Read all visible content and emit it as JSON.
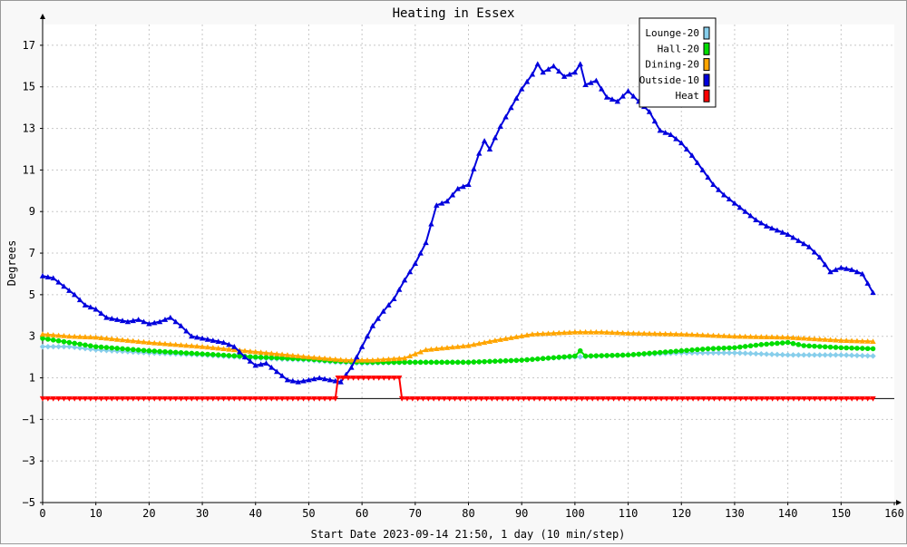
{
  "chart_data": {
    "type": "line",
    "title": "Heating in Essex",
    "xlabel": "Start Date 2023-09-14 21:50, 1 day (10 min/step)",
    "ylabel": "Degrees",
    "xlim": [
      0,
      160
    ],
    "ylim": [
      -5,
      18
    ],
    "x_ticks": [
      0,
      10,
      20,
      30,
      40,
      50,
      60,
      70,
      80,
      90,
      100,
      110,
      120,
      130,
      140,
      150,
      160
    ],
    "y_ticks": [
      -5,
      -3,
      -1,
      1,
      3,
      5,
      7,
      9,
      11,
      13,
      15,
      17
    ],
    "grid": true,
    "legend_position": "top-right",
    "series": [
      {
        "name": "Lounge-20",
        "color": "#87ceeb",
        "marker": "diamond",
        "points": [
          [
            0,
            2.5
          ],
          [
            5,
            2.5
          ],
          [
            10,
            2.35
          ],
          [
            20,
            2.2
          ],
          [
            30,
            2.1
          ],
          [
            40,
            1.95
          ],
          [
            50,
            1.85
          ],
          [
            55,
            1.75
          ],
          [
            60,
            1.7
          ],
          [
            70,
            1.75
          ],
          [
            80,
            1.75
          ],
          [
            90,
            1.85
          ],
          [
            95,
            1.95
          ],
          [
            100,
            2.0
          ],
          [
            110,
            2.1
          ],
          [
            120,
            2.2
          ],
          [
            130,
            2.2
          ],
          [
            140,
            2.1
          ],
          [
            150,
            2.1
          ],
          [
            156,
            2.05
          ]
        ]
      },
      {
        "name": "Hall-20",
        "color": "#00dd00",
        "marker": "circle",
        "points": [
          [
            0,
            2.9
          ],
          [
            5,
            2.7
          ],
          [
            10,
            2.5
          ],
          [
            20,
            2.3
          ],
          [
            30,
            2.15
          ],
          [
            40,
            2.0
          ],
          [
            50,
            1.9
          ],
          [
            55,
            1.8
          ],
          [
            60,
            1.75
          ],
          [
            70,
            1.75
          ],
          [
            80,
            1.75
          ],
          [
            90,
            1.85
          ],
          [
            95,
            1.95
          ],
          [
            100,
            2.05
          ],
          [
            101,
            2.3
          ],
          [
            102,
            2.05
          ],
          [
            110,
            2.1
          ],
          [
            120,
            2.3
          ],
          [
            125,
            2.4
          ],
          [
            130,
            2.45
          ],
          [
            135,
            2.6
          ],
          [
            140,
            2.7
          ],
          [
            143,
            2.55
          ],
          [
            150,
            2.45
          ],
          [
            156,
            2.4
          ]
        ]
      },
      {
        "name": "Dining-20",
        "color": "#ffa500",
        "marker": "triangle",
        "points": [
          [
            0,
            3.1
          ],
          [
            5,
            3.0
          ],
          [
            10,
            2.95
          ],
          [
            20,
            2.7
          ],
          [
            30,
            2.5
          ],
          [
            40,
            2.25
          ],
          [
            50,
            2.0
          ],
          [
            57,
            1.85
          ],
          [
            62,
            1.85
          ],
          [
            68,
            1.95
          ],
          [
            72,
            2.35
          ],
          [
            80,
            2.55
          ],
          [
            85,
            2.8
          ],
          [
            92,
            3.1
          ],
          [
            100,
            3.2
          ],
          [
            105,
            3.2
          ],
          [
            110,
            3.15
          ],
          [
            120,
            3.1
          ],
          [
            130,
            3.0
          ],
          [
            140,
            2.95
          ],
          [
            150,
            2.8
          ],
          [
            156,
            2.75
          ]
        ]
      },
      {
        "name": "Outside-10",
        "color": "#0000dd",
        "marker": "triangle",
        "points": [
          [
            0,
            5.9
          ],
          [
            2,
            5.8
          ],
          [
            4,
            5.4
          ],
          [
            6,
            5.0
          ],
          [
            8,
            4.5
          ],
          [
            10,
            4.3
          ],
          [
            12,
            3.9
          ],
          [
            14,
            3.8
          ],
          [
            16,
            3.7
          ],
          [
            18,
            3.8
          ],
          [
            20,
            3.6
          ],
          [
            22,
            3.7
          ],
          [
            24,
            3.9
          ],
          [
            26,
            3.5
          ],
          [
            28,
            3.0
          ],
          [
            30,
            2.9
          ],
          [
            32,
            2.8
          ],
          [
            34,
            2.7
          ],
          [
            36,
            2.5
          ],
          [
            38,
            2.0
          ],
          [
            40,
            1.6
          ],
          [
            42,
            1.7
          ],
          [
            44,
            1.3
          ],
          [
            46,
            0.9
          ],
          [
            48,
            0.8
          ],
          [
            50,
            0.9
          ],
          [
            52,
            1.0
          ],
          [
            54,
            0.9
          ],
          [
            56,
            0.8
          ],
          [
            58,
            1.5
          ],
          [
            60,
            2.5
          ],
          [
            62,
            3.5
          ],
          [
            64,
            4.2
          ],
          [
            66,
            4.8
          ],
          [
            68,
            5.7
          ],
          [
            70,
            6.5
          ],
          [
            72,
            7.5
          ],
          [
            74,
            9.3
          ],
          [
            76,
            9.5
          ],
          [
            78,
            10.1
          ],
          [
            80,
            10.3
          ],
          [
            82,
            11.8
          ],
          [
            83,
            12.4
          ],
          [
            84,
            12.0
          ],
          [
            86,
            13.1
          ],
          [
            88,
            14.0
          ],
          [
            90,
            14.9
          ],
          [
            92,
            15.6
          ],
          [
            93,
            16.1
          ],
          [
            94,
            15.7
          ],
          [
            96,
            16.0
          ],
          [
            98,
            15.5
          ],
          [
            100,
            15.7
          ],
          [
            101,
            16.1
          ],
          [
            102,
            15.1
          ],
          [
            104,
            15.3
          ],
          [
            106,
            14.5
          ],
          [
            108,
            14.3
          ],
          [
            110,
            14.8
          ],
          [
            112,
            14.3
          ],
          [
            114,
            13.8
          ],
          [
            116,
            12.9
          ],
          [
            118,
            12.7
          ],
          [
            120,
            12.3
          ],
          [
            122,
            11.7
          ],
          [
            124,
            11.0
          ],
          [
            126,
            10.3
          ],
          [
            128,
            9.8
          ],
          [
            130,
            9.4
          ],
          [
            132,
            9.0
          ],
          [
            134,
            8.6
          ],
          [
            136,
            8.3
          ],
          [
            138,
            8.1
          ],
          [
            140,
            7.9
          ],
          [
            142,
            7.6
          ],
          [
            144,
            7.3
          ],
          [
            146,
            6.8
          ],
          [
            148,
            6.1
          ],
          [
            150,
            6.3
          ],
          [
            152,
            6.2
          ],
          [
            154,
            6.0
          ],
          [
            156,
            5.1
          ]
        ]
      },
      {
        "name": "Heat",
        "color": "#ff0000",
        "marker": "triangle-down",
        "points": [
          [
            0,
            0
          ],
          [
            55,
            0
          ],
          [
            55.5,
            1
          ],
          [
            67,
            1
          ],
          [
            67.5,
            0
          ],
          [
            156,
            0
          ]
        ]
      }
    ]
  }
}
